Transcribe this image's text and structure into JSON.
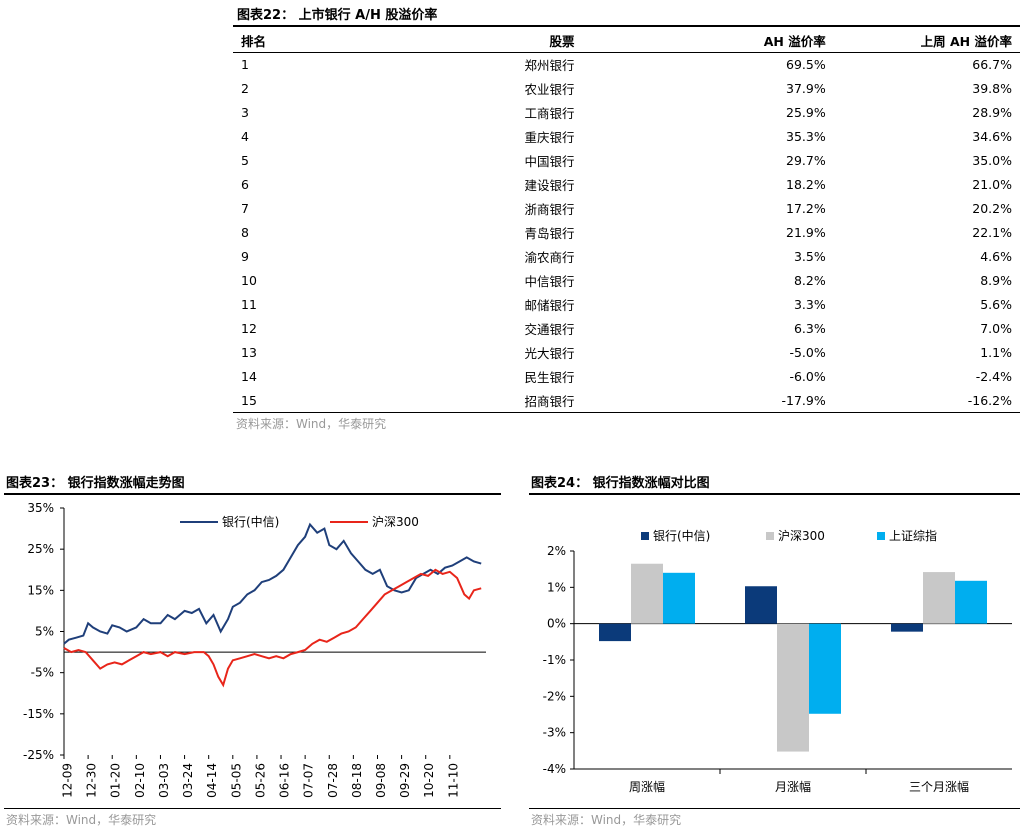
{
  "table22": {
    "title": "图表22：  上市银行 A/H 股溢价率",
    "headers": [
      "排名",
      "股票",
      "AH 溢价率",
      "上周 AH 溢价率"
    ],
    "rows": [
      [
        "1",
        "郑州银行",
        "69.5%",
        "66.7%"
      ],
      [
        "2",
        "农业银行",
        "37.9%",
        "39.8%"
      ],
      [
        "3",
        "工商银行",
        "25.9%",
        "28.9%"
      ],
      [
        "4",
        "重庆银行",
        "35.3%",
        "34.6%"
      ],
      [
        "5",
        "中国银行",
        "29.7%",
        "35.0%"
      ],
      [
        "6",
        "建设银行",
        "18.2%",
        "21.0%"
      ],
      [
        "7",
        "浙商银行",
        "17.2%",
        "20.2%"
      ],
      [
        "8",
        "青岛银行",
        "21.9%",
        "22.1%"
      ],
      [
        "9",
        "渝农商行",
        "3.5%",
        "4.6%"
      ],
      [
        "10",
        "中信银行",
        "8.2%",
        "8.9%"
      ],
      [
        "11",
        "邮储银行",
        "3.3%",
        "5.6%"
      ],
      [
        "12",
        "交通银行",
        "6.3%",
        "7.0%"
      ],
      [
        "13",
        "光大银行",
        "-5.0%",
        "1.1%"
      ],
      [
        "14",
        "民生银行",
        "-6.0%",
        "-2.4%"
      ],
      [
        "15",
        "招商银行",
        "-17.9%",
        "-16.2%"
      ]
    ],
    "source": "资料来源：Wind，华泰研究"
  },
  "chart23": {
    "title": "图表23：  银行指数涨幅走势图",
    "source": "资料来源：Wind，华泰研究"
  },
  "chart24": {
    "title": "图表24：  银行指数涨幅对比图",
    "source": "资料来源：Wind，华泰研究"
  },
  "chart_data": [
    {
      "type": "line",
      "title": "银行指数涨幅走势图",
      "ylim": [
        -25,
        35
      ],
      "yticks": [
        "35%",
        "25%",
        "15%",
        "5%",
        "-5%",
        "-15%",
        "-25%"
      ],
      "yticks_values": [
        35,
        25,
        15,
        5,
        -5,
        -15,
        -25
      ],
      "xticks": [
        "12-09",
        "12-30",
        "01-20",
        "02-10",
        "03-03",
        "03-24",
        "04-14",
        "05-05",
        "05-26",
        "06-16",
        "07-07",
        "07-28",
        "08-18",
        "09-08",
        "09-29",
        "10-20",
        "11-10"
      ],
      "x_range": [
        0,
        17.5
      ],
      "legend_position": "top",
      "colors": {
        "bank": "#1f3f7a",
        "hs300": "#e8251a"
      },
      "series": [
        {
          "name": "银行(中信)",
          "points": [
            [
              0,
              2
            ],
            [
              0.2,
              3
            ],
            [
              0.5,
              3.5
            ],
            [
              0.8,
              4
            ],
            [
              1,
              7
            ],
            [
              1.2,
              6
            ],
            [
              1.5,
              5
            ],
            [
              1.8,
              4.5
            ],
            [
              2,
              6.5
            ],
            [
              2.3,
              6
            ],
            [
              2.6,
              5
            ],
            [
              3,
              6
            ],
            [
              3.3,
              8
            ],
            [
              3.6,
              7
            ],
            [
              4,
              7
            ],
            [
              4.3,
              9
            ],
            [
              4.6,
              8
            ],
            [
              5,
              10
            ],
            [
              5.3,
              9.5
            ],
            [
              5.6,
              10.5
            ],
            [
              5.9,
              7
            ],
            [
              6.2,
              9
            ],
            [
              6.5,
              5
            ],
            [
              6.8,
              8
            ],
            [
              7,
              11
            ],
            [
              7.3,
              12
            ],
            [
              7.6,
              14
            ],
            [
              7.9,
              15
            ],
            [
              8.2,
              17
            ],
            [
              8.5,
              17.5
            ],
            [
              8.8,
              18.5
            ],
            [
              9.1,
              20
            ],
            [
              9.4,
              23
            ],
            [
              9.7,
              26
            ],
            [
              10,
              28
            ],
            [
              10.2,
              31
            ],
            [
              10.5,
              29
            ],
            [
              10.8,
              30
            ],
            [
              11,
              26
            ],
            [
              11.3,
              25
            ],
            [
              11.6,
              27
            ],
            [
              11.9,
              24
            ],
            [
              12.2,
              22
            ],
            [
              12.5,
              20
            ],
            [
              12.8,
              19
            ],
            [
              13.1,
              20
            ],
            [
              13.4,
              16
            ],
            [
              13.7,
              15
            ],
            [
              14,
              14.5
            ],
            [
              14.3,
              15
            ],
            [
              14.6,
              18
            ],
            [
              14.9,
              19
            ],
            [
              15.2,
              20
            ],
            [
              15.5,
              19
            ],
            [
              15.8,
              20.5
            ],
            [
              16.1,
              21
            ],
            [
              16.4,
              22
            ],
            [
              16.7,
              23
            ],
            [
              17,
              22
            ],
            [
              17.3,
              21.5
            ]
          ]
        },
        {
          "name": "沪深300",
          "points": [
            [
              0,
              1
            ],
            [
              0.3,
              0
            ],
            [
              0.6,
              0.5
            ],
            [
              0.9,
              0
            ],
            [
              1.2,
              -2
            ],
            [
              1.5,
              -4
            ],
            [
              1.8,
              -3
            ],
            [
              2.1,
              -2.5
            ],
            [
              2.4,
              -3
            ],
            [
              2.7,
              -2
            ],
            [
              3,
              -1
            ],
            [
              3.3,
              0
            ],
            [
              3.6,
              -0.5
            ],
            [
              4,
              0
            ],
            [
              4.3,
              -1
            ],
            [
              4.6,
              0
            ],
            [
              5,
              -0.5
            ],
            [
              5.4,
              0
            ],
            [
              5.8,
              0
            ],
            [
              6,
              -1
            ],
            [
              6.2,
              -3
            ],
            [
              6.4,
              -6
            ],
            [
              6.6,
              -8
            ],
            [
              6.8,
              -4
            ],
            [
              7,
              -2
            ],
            [
              7.3,
              -1.5
            ],
            [
              7.6,
              -1
            ],
            [
              7.9,
              -0.5
            ],
            [
              8.2,
              -1
            ],
            [
              8.5,
              -1.5
            ],
            [
              8.8,
              -1
            ],
            [
              9.1,
              -1.5
            ],
            [
              9.4,
              -0.5
            ],
            [
              9.7,
              0
            ],
            [
              10,
              0.5
            ],
            [
              10.3,
              2
            ],
            [
              10.6,
              3
            ],
            [
              10.9,
              2.5
            ],
            [
              11.2,
              3.5
            ],
            [
              11.5,
              4.5
            ],
            [
              11.8,
              5
            ],
            [
              12.1,
              6
            ],
            [
              12.4,
              8
            ],
            [
              12.7,
              10
            ],
            [
              13,
              12
            ],
            [
              13.3,
              14
            ],
            [
              13.6,
              15
            ],
            [
              13.9,
              16
            ],
            [
              14.2,
              17
            ],
            [
              14.5,
              18
            ],
            [
              14.8,
              19
            ],
            [
              15.1,
              18.5
            ],
            [
              15.4,
              20
            ],
            [
              15.7,
              19
            ],
            [
              16,
              19.5
            ],
            [
              16.3,
              18
            ],
            [
              16.6,
              14
            ],
            [
              16.8,
              13
            ],
            [
              17,
              15
            ],
            [
              17.3,
              15.5
            ]
          ]
        }
      ]
    },
    {
      "type": "bar",
      "title": "银行指数涨幅对比图",
      "categories": [
        "周涨幅",
        "月涨幅",
        "三个月涨幅"
      ],
      "ylim": [
        -4,
        2
      ],
      "yticks": [
        "2%",
        "1%",
        "0%",
        "-1%",
        "-2%",
        "-3%",
        "-4%"
      ],
      "yticks_values": [
        2,
        1,
        0,
        -1,
        -2,
        -3,
        -4
      ],
      "legend_position": "top",
      "series": [
        {
          "name": "银行(中信)",
          "color": "#0b3a7a",
          "values": [
            -0.48,
            1.03,
            -0.22
          ]
        },
        {
          "name": "沪深300",
          "color": "#c8c8c8",
          "values": [
            1.65,
            -3.52,
            1.42
          ]
        },
        {
          "name": "上证综指",
          "color": "#00aeef",
          "values": [
            1.4,
            -2.48,
            1.18
          ]
        }
      ]
    }
  ]
}
